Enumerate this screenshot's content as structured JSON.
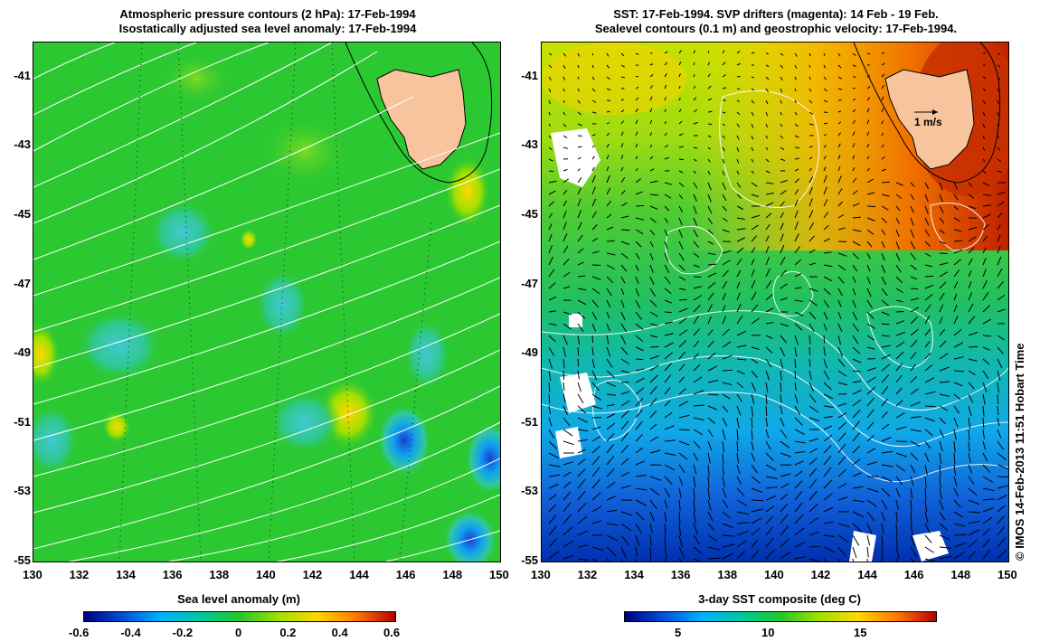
{
  "left": {
    "title_line1": "Atmospheric pressure contours (2 hPa): 17-Feb-1994",
    "title_line2": "Isostatically adjusted sea level anomaly: 17-Feb-1994",
    "colorbar_title": "Sea level anomaly (m)",
    "colorbar_ticks": [
      "-0.6",
      "-0.4",
      "-0.2",
      "0",
      "0.2",
      "0.4",
      "0.6"
    ],
    "colorbar_stops": [
      "#00007f",
      "#0050d8",
      "#00b4ff",
      "#00c8a0",
      "#24c82a",
      "#a0e000",
      "#ffd800",
      "#ff7800",
      "#b40000"
    ]
  },
  "right": {
    "title_line1": "SST: 17-Feb-1994. SVP drifters (magenta): 14 Feb - 19 Feb.",
    "title_line2": "Sealevel contours (0.1 m) and geostrophic velocity: 17-Feb-1994.",
    "colorbar_title": "3-day SST composite (deg C)",
    "colorbar_ticks": [
      "5",
      "10",
      "15"
    ],
    "colorbar_stops": [
      "#00007f",
      "#0050d8",
      "#00b4ff",
      "#00c8a0",
      "#24c82a",
      "#a0e000",
      "#ffd800",
      "#ff7800",
      "#b40000"
    ],
    "scale_arrow_label": "1 m/s"
  },
  "x_ticks": [
    "130",
    "132",
    "134",
    "136",
    "138",
    "140",
    "142",
    "144",
    "146",
    "148",
    "150"
  ],
  "y_ticks": [
    "-41",
    "-43",
    "-45",
    "-47",
    "-49",
    "-51",
    "-53",
    "-55"
  ],
  "timestamp": "© IMOS 14-Feb-2013 11:51 Hobart Time",
  "colors": {
    "land": "#f8c49e",
    "contour": "#ffffff",
    "base_green": "#2cc832"
  }
}
